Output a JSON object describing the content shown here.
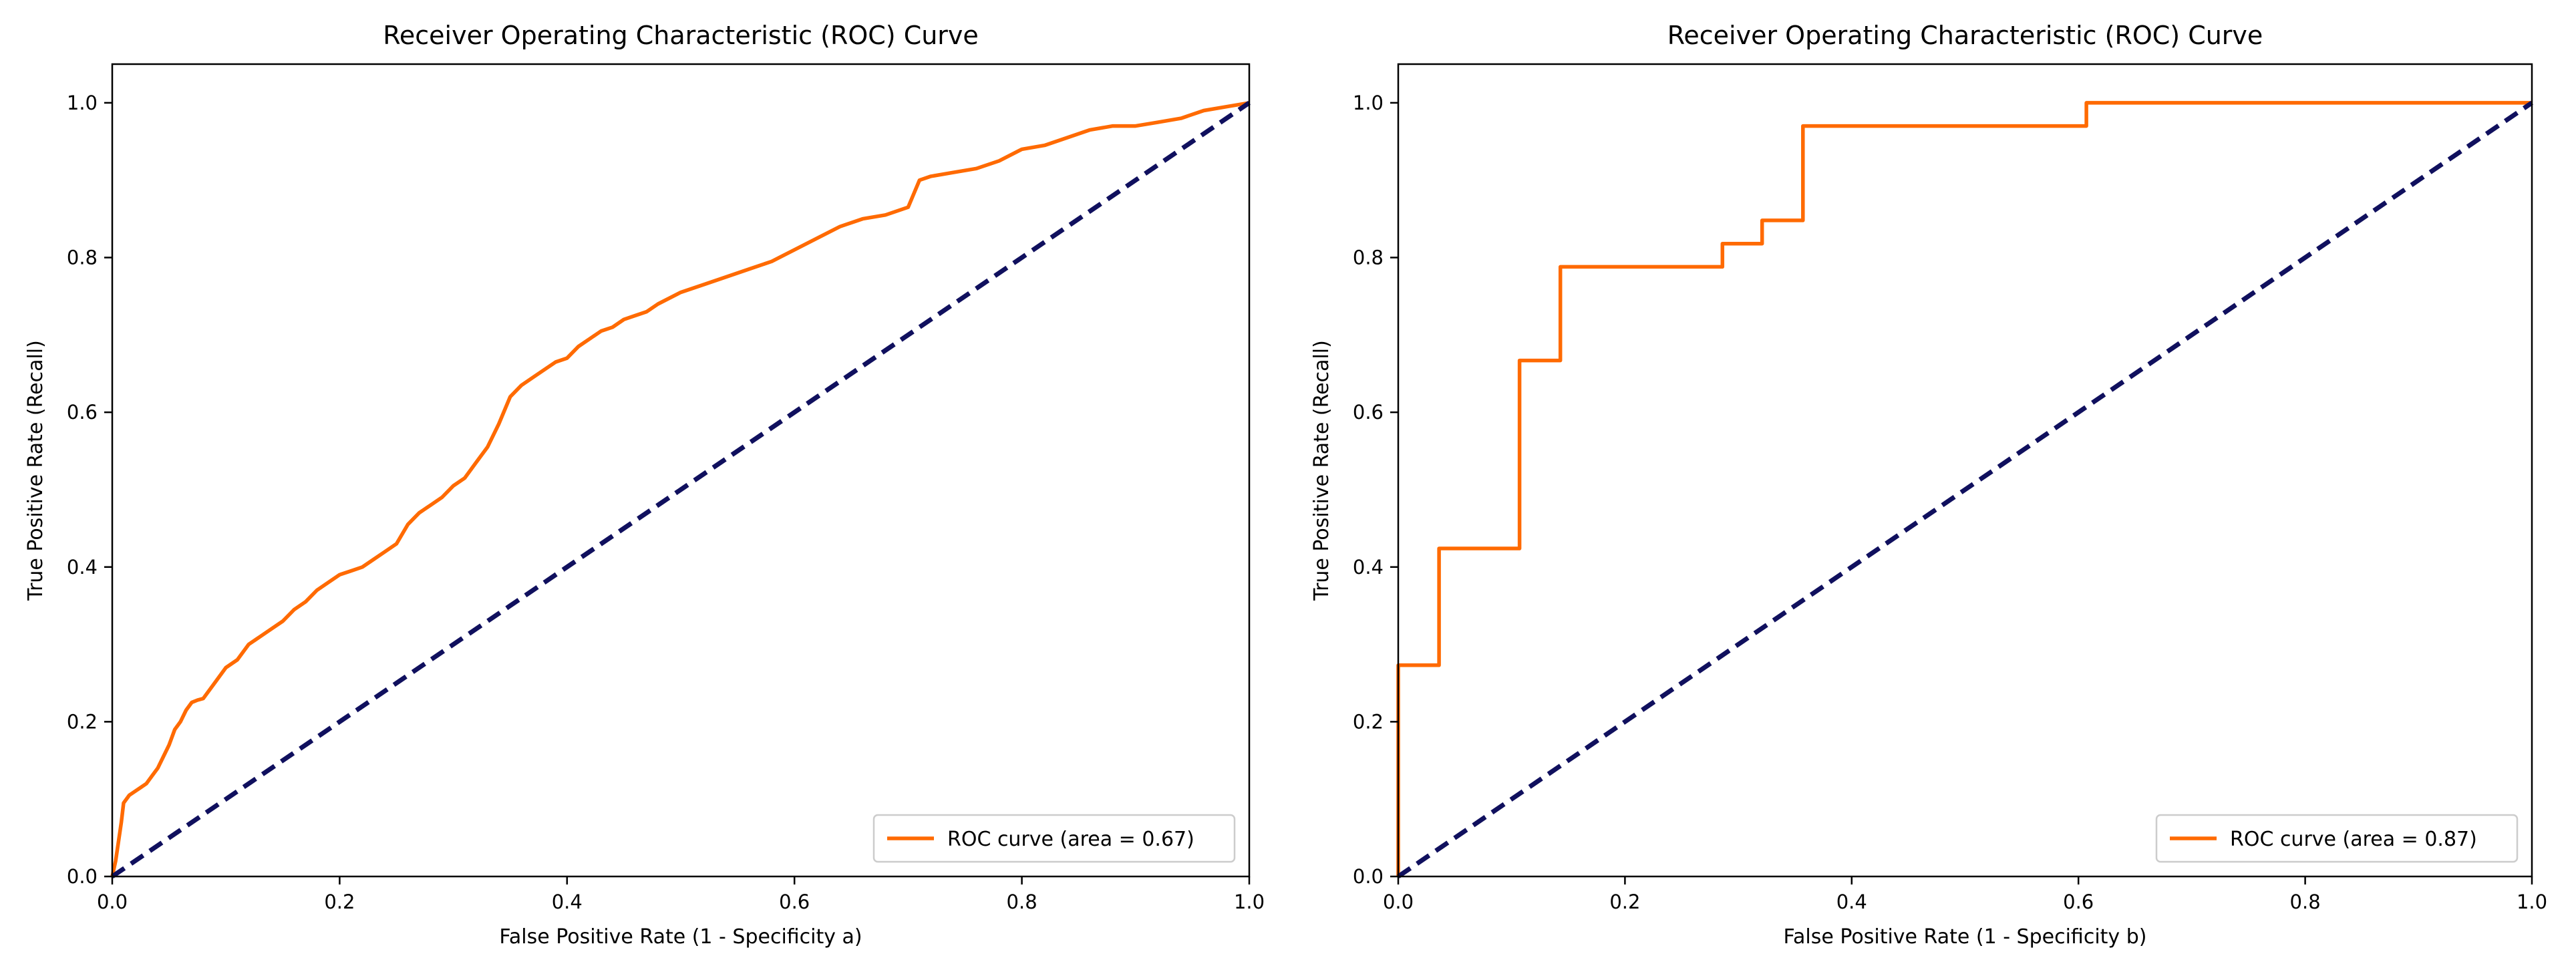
{
  "colors": {
    "roc": "#ff6a00",
    "diagonal": "#10105e",
    "axes": "#000000",
    "legend_border": "#cccccc"
  },
  "chart_data": [
    {
      "type": "line",
      "title": "Receiver Operating Characteristic (ROC) Curve",
      "xlabel": "False Positive Rate (1 - Specificity a)",
      "ylabel": "True Positive Rate (Recall)",
      "xlim": [
        0,
        1.0
      ],
      "ylim": [
        0,
        1.05
      ],
      "x_ticks": [
        "0.0",
        "0.2",
        "0.4",
        "0.6",
        "0.8",
        "1.0"
      ],
      "y_ticks": [
        "0.0",
        "0.2",
        "0.4",
        "0.6",
        "0.8",
        "1.0"
      ],
      "grid": false,
      "legend_position": "lower-right",
      "series": [
        {
          "name": "ROC curve (area = 0.67)",
          "style": "solid",
          "x": [
            0.0,
            0.003,
            0.006,
            0.008,
            0.01,
            0.015,
            0.02,
            0.025,
            0.03,
            0.035,
            0.04,
            0.045,
            0.05,
            0.055,
            0.06,
            0.065,
            0.07,
            0.075,
            0.08,
            0.09,
            0.1,
            0.11,
            0.12,
            0.13,
            0.14,
            0.15,
            0.16,
            0.17,
            0.18,
            0.19,
            0.2,
            0.21,
            0.22,
            0.23,
            0.24,
            0.25,
            0.26,
            0.27,
            0.28,
            0.29,
            0.3,
            0.31,
            0.32,
            0.33,
            0.34,
            0.35,
            0.36,
            0.37,
            0.38,
            0.39,
            0.4,
            0.41,
            0.42,
            0.43,
            0.44,
            0.45,
            0.46,
            0.47,
            0.48,
            0.5,
            0.52,
            0.54,
            0.56,
            0.58,
            0.6,
            0.62,
            0.64,
            0.66,
            0.68,
            0.7,
            0.71,
            0.72,
            0.74,
            0.76,
            0.78,
            0.8,
            0.82,
            0.84,
            0.86,
            0.88,
            0.9,
            0.92,
            0.94,
            0.96,
            0.98,
            1.0
          ],
          "y": [
            0.0,
            0.02,
            0.05,
            0.07,
            0.095,
            0.105,
            0.11,
            0.115,
            0.12,
            0.13,
            0.14,
            0.155,
            0.17,
            0.19,
            0.2,
            0.215,
            0.225,
            0.228,
            0.23,
            0.25,
            0.27,
            0.28,
            0.3,
            0.31,
            0.32,
            0.33,
            0.345,
            0.355,
            0.37,
            0.38,
            0.39,
            0.395,
            0.4,
            0.41,
            0.42,
            0.43,
            0.455,
            0.47,
            0.48,
            0.49,
            0.505,
            0.515,
            0.535,
            0.555,
            0.585,
            0.62,
            0.635,
            0.645,
            0.655,
            0.665,
            0.67,
            0.685,
            0.695,
            0.705,
            0.71,
            0.72,
            0.725,
            0.73,
            0.74,
            0.755,
            0.765,
            0.775,
            0.785,
            0.795,
            0.81,
            0.825,
            0.84,
            0.85,
            0.855,
            0.865,
            0.9,
            0.905,
            0.91,
            0.915,
            0.925,
            0.94,
            0.945,
            0.955,
            0.965,
            0.97,
            0.97,
            0.975,
            0.98,
            0.99,
            0.995,
            1.0
          ]
        },
        {
          "name": "",
          "style": "dashed",
          "x": [
            0.0,
            1.0
          ],
          "y": [
            0.0,
            1.0
          ]
        }
      ]
    },
    {
      "type": "line",
      "title": "Receiver Operating Characteristic (ROC) Curve",
      "xlabel": "False Positive Rate (1 - Specificity b)",
      "ylabel": "True Positive Rate (Recall)",
      "xlim": [
        0,
        1.0
      ],
      "ylim": [
        0,
        1.05
      ],
      "x_ticks": [
        "0.0",
        "0.2",
        "0.4",
        "0.6",
        "0.8",
        "1.0"
      ],
      "y_ticks": [
        "0.0",
        "0.2",
        "0.4",
        "0.6",
        "0.8",
        "1.0"
      ],
      "grid": false,
      "legend_position": "lower-right",
      "series": [
        {
          "name": "ROC curve (area = 0.87)",
          "style": "solid",
          "x": [
            0.0,
            0.0,
            0.0,
            0.036,
            0.036,
            0.107,
            0.107,
            0.143,
            0.143,
            0.286,
            0.286,
            0.321,
            0.321,
            0.357,
            0.357,
            0.607,
            0.607,
            1.0
          ],
          "y": [
            0.0,
            0.273,
            0.273,
            0.273,
            0.424,
            0.424,
            0.667,
            0.667,
            0.788,
            0.788,
            0.818,
            0.818,
            0.848,
            0.848,
            0.97,
            0.97,
            1.0,
            1.0
          ]
        },
        {
          "name": "",
          "style": "dashed",
          "x": [
            0.0,
            1.0
          ],
          "y": [
            0.0,
            1.0
          ]
        }
      ]
    }
  ]
}
